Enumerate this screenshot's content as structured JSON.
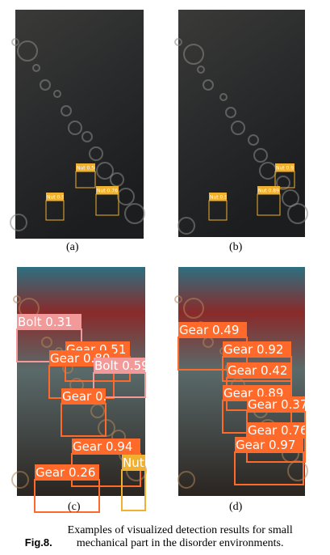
{
  "figure": {
    "panels": [
      {
        "label": "(a)",
        "detections": [
          "Nut 0.93",
          "Nut 0.76",
          "Nut 0.56"
        ]
      },
      {
        "label": "(b)",
        "detections": [
          "Nut 0.95",
          "Nut 0.89",
          "Nut 0.93"
        ]
      },
      {
        "label": "(c)",
        "detections": [
          "Bolt 0.31",
          "Gear 0.51",
          "Gear 0.80",
          "Bolt 0.59",
          "Gear 0.36",
          "Gear 0.94",
          "Gear 0.26",
          "Nut"
        ]
      },
      {
        "label": "(d)",
        "detections": [
          "Gear 0.49",
          "Gear 0.92",
          "Gear 0.42",
          "Gear 0.89",
          "Gear 0.37",
          "Gear 0.76",
          "Gear 0.97"
        ]
      }
    ],
    "caption": {
      "label": "Fig.8.",
      "text": "Examples of visualized detection results for small mechanical part in the disorder environments."
    }
  }
}
